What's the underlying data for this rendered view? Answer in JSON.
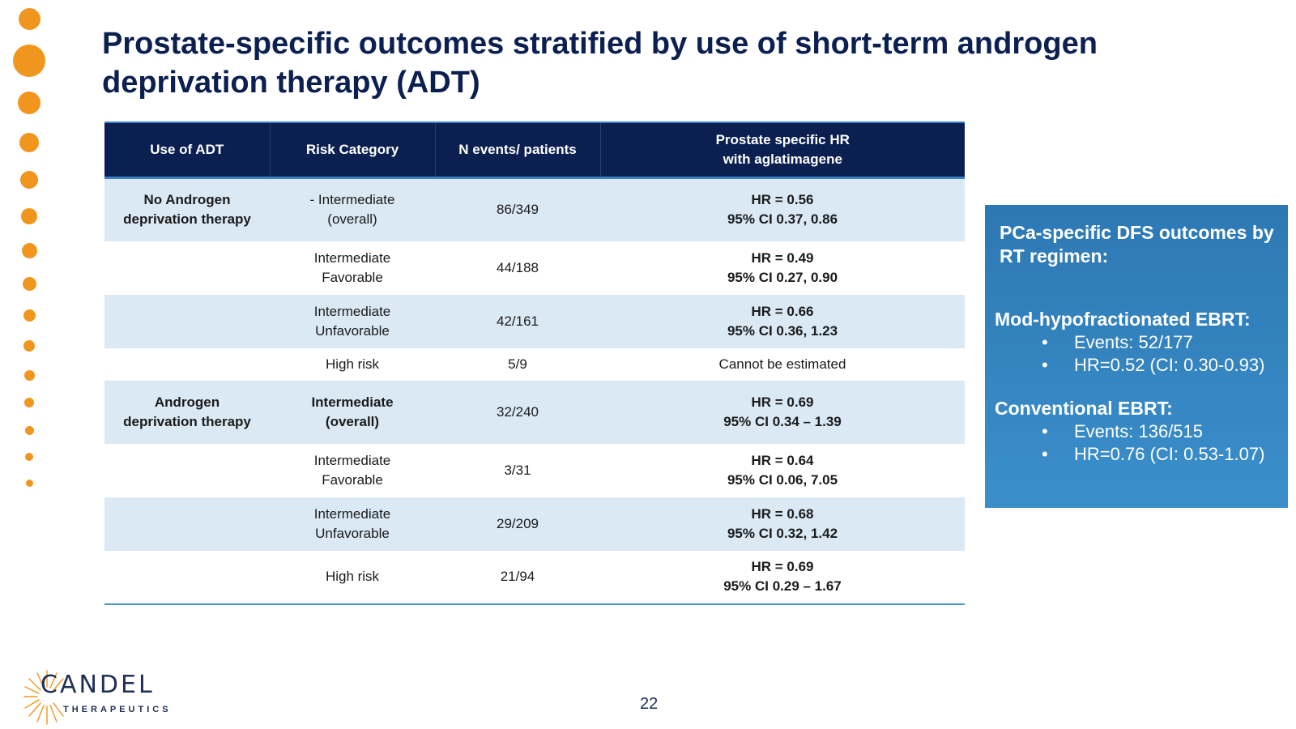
{
  "slide": {
    "title": "Prostate-specific outcomes stratified by use of short-term androgen deprivation therapy (ADT)",
    "page_number": "22"
  },
  "colors": {
    "navy": "#0b2050",
    "accent_orange": "#f0961e",
    "row_shade": "#dbe9f5",
    "side_box": "#3a8fcb"
  },
  "table": {
    "headers": [
      "Use of ADT",
      "Risk Category",
      "N events/ patients",
      [
        "Prostate specific HR",
        "with aglatimagene"
      ]
    ],
    "rows": [
      {
        "adt": [
          "No Androgen",
          "deprivation therapy"
        ],
        "risk": [
          "- Intermediate",
          "(overall)"
        ],
        "risk_bold": false,
        "n": "86/349",
        "hr": [
          "HR = 0.56",
          "95% CI 0.37, 0.86"
        ],
        "hr_bold": true
      },
      {
        "adt": [],
        "risk": [
          "Intermediate",
          "Favorable"
        ],
        "risk_bold": false,
        "n": "44/188",
        "hr": [
          "HR = 0.49",
          "95% CI 0.27, 0.90"
        ],
        "hr_bold": true
      },
      {
        "adt": [],
        "risk": [
          "Intermediate",
          "Unfavorable"
        ],
        "risk_bold": false,
        "n": "42/161",
        "hr": [
          "HR = 0.66",
          "95% CI 0.36, 1.23"
        ],
        "hr_bold": true
      },
      {
        "adt": [],
        "risk": [
          "High risk"
        ],
        "risk_bold": false,
        "n": "5/9",
        "hr": [
          "Cannot be estimated"
        ],
        "hr_bold": false
      },
      {
        "adt": [
          "Androgen",
          "deprivation therapy"
        ],
        "risk": [
          "Intermediate",
          "(overall)"
        ],
        "risk_bold": true,
        "n": "32/240",
        "hr": [
          "HR = 0.69",
          "95% CI 0.34 – 1.39"
        ],
        "hr_bold": true
      },
      {
        "adt": [],
        "risk": [
          "Intermediate",
          "Favorable"
        ],
        "risk_bold": false,
        "n": "3/31",
        "hr": [
          "HR = 0.64",
          "95% CI 0.06, 7.05"
        ],
        "hr_bold": true
      },
      {
        "adt": [],
        "risk": [
          "Intermediate",
          "Unfavorable"
        ],
        "risk_bold": false,
        "n": "29/209",
        "hr": [
          "HR = 0.68",
          "95% CI 0.32, 1.42"
        ],
        "hr_bold": true
      },
      {
        "adt": [],
        "risk": [
          "High risk"
        ],
        "risk_bold": false,
        "n": "21/94",
        "hr": [
          "HR = 0.69",
          "95% CI 0.29 – 1.67"
        ],
        "hr_bold": true
      }
    ]
  },
  "side_panel": {
    "heading": "PCa-specific DFS outcomes by RT regimen:",
    "sections": [
      {
        "title": "Mod-hypofractionated EBRT:",
        "items": [
          "Events: 52/177",
          "HR=0.52 (CI: 0.30-0.93)"
        ]
      },
      {
        "title": "Conventional EBRT:",
        "items": [
          "Events: 136/515",
          "HR=0.76 (CI: 0.53-1.07)"
        ]
      }
    ]
  },
  "logo": {
    "name": "CANDEL",
    "sub": "THERAPEUTICS"
  }
}
